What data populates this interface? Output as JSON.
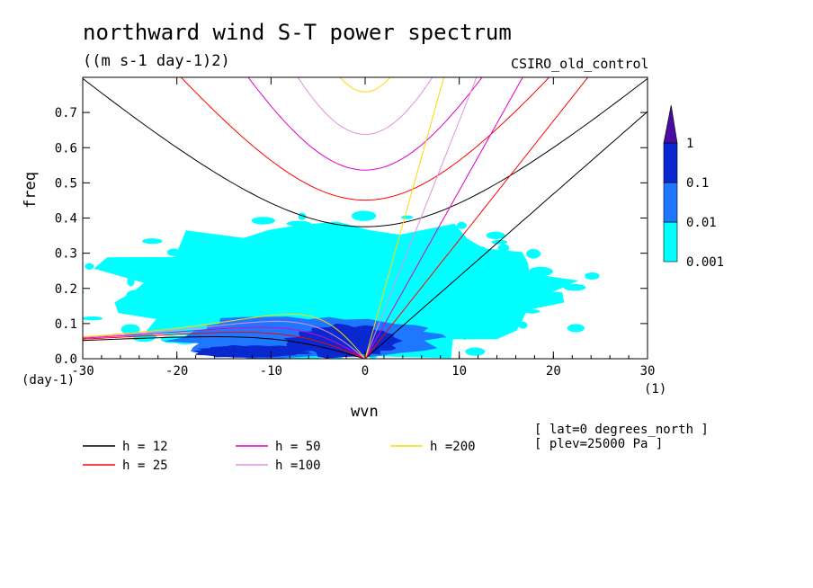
{
  "header": {
    "title": "northward wind S-T power spectrum",
    "units": "((m s-1 day-1)2)",
    "model": "CSIRO_old_control"
  },
  "footer": {
    "lat": "[ lat=0 degrees_north ]",
    "plev": "[ plev=25000 Pa ]"
  },
  "chart_data": {
    "type": "heatmap",
    "title": "northward wind S-T power spectrum",
    "subtitle": "((m s-1 day-1)2)",
    "xlabel": "wvn",
    "ylabel": "freq",
    "x_unit": "(1)",
    "y_unit": "(day-1)",
    "xlim": [
      -30,
      30
    ],
    "ylim": [
      0,
      0.8
    ],
    "x_ticks": [
      -30,
      -20,
      -10,
      0,
      10,
      20,
      30
    ],
    "x_tick_labels": [
      "-30",
      "-20",
      "-10",
      "0",
      "10",
      "20",
      "30"
    ],
    "y_ticks": [
      0,
      0.1,
      0.2,
      0.3,
      0.4,
      0.5,
      0.6,
      0.7
    ],
    "y_tick_labels": [
      "0.0",
      "0.1",
      "0.2",
      "0.3",
      "0.4",
      "0.5",
      "0.6",
      "0.7"
    ],
    "colorbar": {
      "levels": [
        "0.001",
        "0.01",
        "0.1",
        "1"
      ],
      "colors": [
        "#00ffff",
        "#1e78ff",
        "#0a28d0",
        "#4b0aa0"
      ]
    },
    "power_regions": [
      {
        "level": "0.001",
        "x_center": -3,
        "y_center": 0.19,
        "x_halfwidth": 24,
        "y_halfwidth": 0.19
      },
      {
        "level": "0.01",
        "x_center": -6,
        "y_center": 0.06,
        "x_halfwidth": 14,
        "y_halfwidth": 0.06
      },
      {
        "level": "0.1",
        "x_center": -2,
        "y_center": 0.05,
        "x_halfwidth": 6,
        "y_halfwidth": 0.045
      },
      {
        "level": "0.1",
        "x_center": -12,
        "y_center": 0.02,
        "x_halfwidth": 6,
        "y_halfwidth": 0.018
      }
    ],
    "series": [
      {
        "name": "h = 12",
        "equivalent_depth": 12,
        "color": "#000000"
      },
      {
        "name": "h = 25",
        "equivalent_depth": 25,
        "color": "#ff0000"
      },
      {
        "name": "h = 50",
        "equivalent_depth": 50,
        "color": "#e000c8"
      },
      {
        "name": "h =100",
        "equivalent_depth": 100,
        "color": "#e090e0"
      },
      {
        "name": "h =200",
        "equivalent_depth": 200,
        "color": "#ffd700"
      }
    ],
    "dispersion_curves": [
      "kelvin",
      "rossby_n1",
      "inertia_gravity_n1"
    ],
    "legend_position": "bottom"
  }
}
